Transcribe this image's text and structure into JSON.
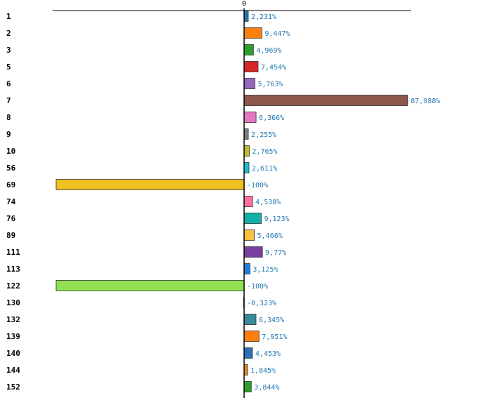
{
  "chart_data": {
    "type": "bar",
    "orientation": "horizontal",
    "title": "",
    "xlabel": "",
    "ylabel": "",
    "x_tick_labels": [
      "0"
    ],
    "grid": false,
    "legend": "none",
    "categories": [
      "1",
      "2",
      "3",
      "5",
      "6",
      "7",
      "8",
      "9",
      "10",
      "56",
      "69",
      "74",
      "76",
      "89",
      "111",
      "113",
      "122",
      "130",
      "132",
      "139",
      "140",
      "144",
      "152"
    ],
    "values": [
      2.231,
      9.447,
      4.969,
      7.454,
      5.763,
      87.088,
      6.366,
      2.255,
      2.765,
      2.611,
      -100,
      4.538,
      9.123,
      5.466,
      9.77,
      3.125,
      -100,
      -0.323,
      6.345,
      7.951,
      4.453,
      1.845,
      3.844
    ],
    "value_labels": [
      "2,231%",
      "9,447%",
      "4,969%",
      "7,454%",
      "5,763%",
      "87,088%",
      "6,366%",
      "2,255%",
      "2,765%",
      "2,611%",
      "-100%",
      "4,538%",
      "9,123%",
      "5,466%",
      "9,77%",
      "3,125%",
      "-100%",
      "-0,323%",
      "6,345%",
      "7,951%",
      "4,453%",
      "1,845%",
      "3,844%"
    ],
    "colors": [
      "#1f77b4",
      "#ff7f0e",
      "#2ca02c",
      "#d62728",
      "#9467bd",
      "#8c564b",
      "#e377c2",
      "#7f7f7f",
      "#bcbd22",
      "#17becf",
      "#f0c020",
      "#ff6fa0",
      "#10b0a8",
      "#f4c040",
      "#7b3f9e",
      "#1e7fe0",
      "#90e050",
      "#888888",
      "#3a8a9a",
      "#ff7f0e",
      "#2a6fb4",
      "#e8841c",
      "#2ca02c"
    ],
    "xlim": [
      -100,
      90
    ]
  }
}
